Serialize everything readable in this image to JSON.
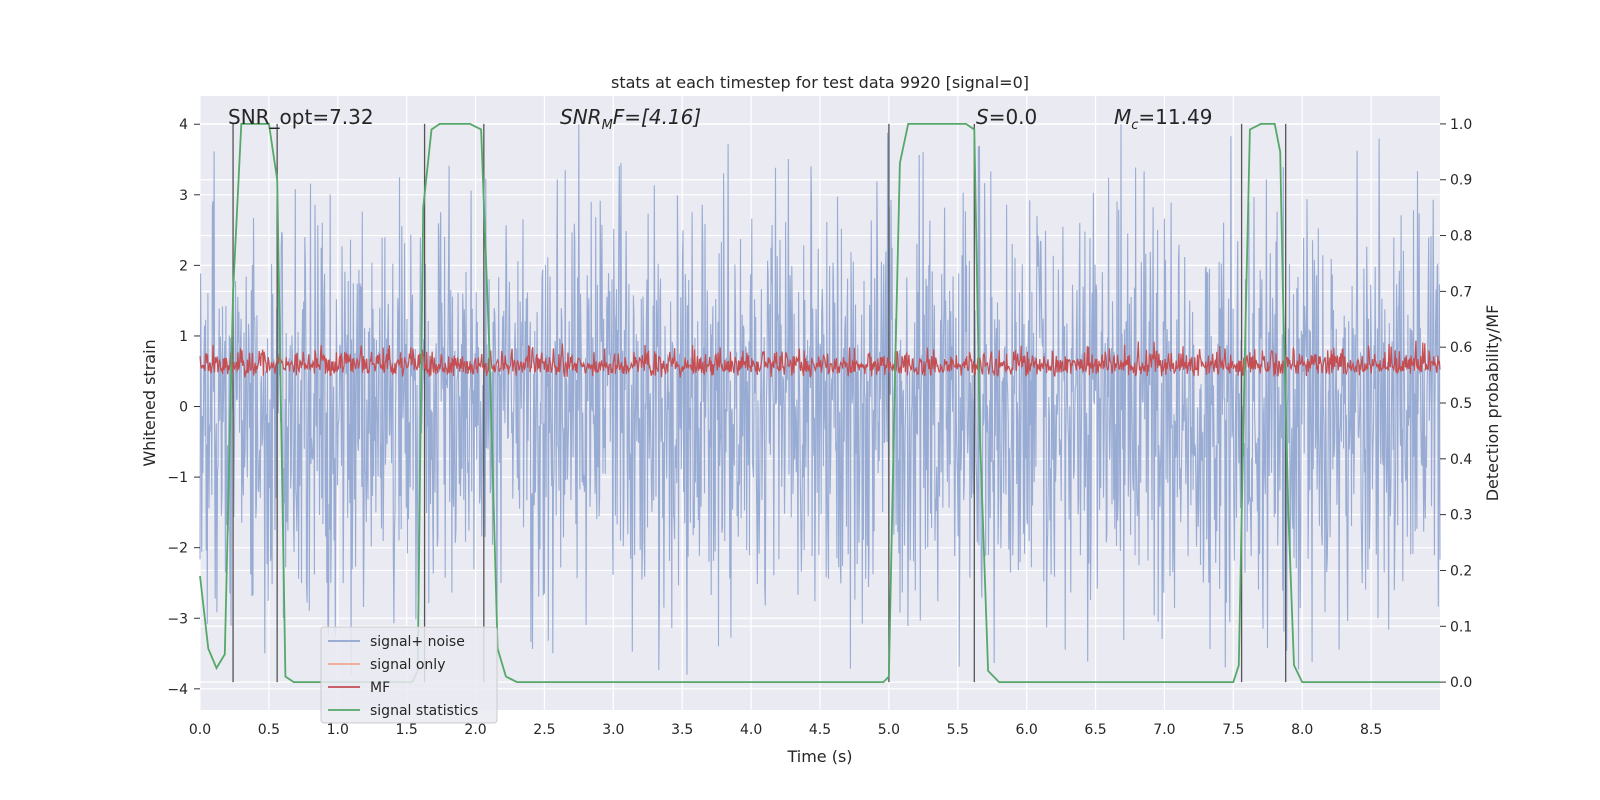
{
  "chart_data": {
    "type": "line",
    "title": "stats at each timestep for test data 9920 [signal=0]",
    "xlabel": "Time (s)",
    "ylabel_left": "Whitened strain",
    "ylabel_right": "Detection probability/MF",
    "xlim": [
      0.0,
      9.0
    ],
    "ylim_left": [
      -4.3,
      4.4
    ],
    "ylim_right": [
      -0.05,
      1.05
    ],
    "xticks": [
      "0.0",
      "0.5",
      "1.0",
      "1.5",
      "2.0",
      "2.5",
      "3.0",
      "3.5",
      "4.0",
      "4.5",
      "5.0",
      "5.5",
      "6.0",
      "6.5",
      "7.0",
      "7.5",
      "8.0",
      "8.5"
    ],
    "xtick_values": [
      0.0,
      0.5,
      1.0,
      1.5,
      2.0,
      2.5,
      3.0,
      3.5,
      4.0,
      4.5,
      5.0,
      5.5,
      6.0,
      6.5,
      7.0,
      7.5,
      8.0,
      8.5
    ],
    "yticks_left": [
      "−4",
      "−3",
      "−2",
      "−1",
      "0",
      "1",
      "2",
      "3",
      "4"
    ],
    "ytick_values_left": [
      -4,
      -3,
      -2,
      -1,
      0,
      1,
      2,
      3,
      4
    ],
    "yticks_right": [
      "0.0",
      "0.1",
      "0.2",
      "0.3",
      "0.4",
      "0.5",
      "0.6",
      "0.7",
      "0.8",
      "0.9",
      "1.0"
    ],
    "ytick_values_right": [
      0.0,
      0.1,
      0.2,
      0.3,
      0.4,
      0.5,
      0.6,
      0.7,
      0.8,
      0.9,
      1.0
    ],
    "annotations": {
      "snr_opt": "SNR_opt=7.32",
      "snr_mf_base": "SNR",
      "snr_mf_sub": "M",
      "snr_mf_rest": "F=[4.16]",
      "s_base": "S",
      "s_rest": "=0.0",
      "mc_base": "M",
      "mc_sub": "c",
      "mc_rest": "=11.49"
    },
    "legend": {
      "position": "lower-left",
      "entries": [
        {
          "label": "signal+ noise",
          "color": "#8fa4cf"
        },
        {
          "label": "signal only",
          "color": "#f0a98c"
        },
        {
          "label": "MF",
          "color": "#c44e52"
        },
        {
          "label": "signal statistics",
          "color": "#55a868"
        }
      ]
    },
    "series": [
      {
        "name": "signal+ noise",
        "axis": "left",
        "color": "#8fa4cf",
        "description": "whitened noise samples, roughly symmetric, amplitude mostly within ±3.5"
      },
      {
        "name": "MF",
        "axis": "right",
        "color": "#c44e52",
        "description": "matched filter output fluctuating between about 0.51 and 0.61"
      },
      {
        "name": "signal statistics",
        "axis": "right",
        "color": "#55a868",
        "x": [
          0.0,
          0.06,
          0.12,
          0.18,
          0.24,
          0.3,
          0.36,
          0.42,
          0.5,
          0.56,
          0.62,
          0.68,
          1.54,
          1.58,
          1.62,
          1.68,
          1.74,
          1.82,
          1.96,
          2.04,
          2.1,
          2.16,
          2.22,
          2.3,
          2.38,
          4.96,
          5.0,
          5.04,
          5.08,
          5.14,
          5.3,
          5.56,
          5.62,
          5.66,
          5.72,
          5.8,
          7.5,
          7.54,
          7.58,
          7.62,
          7.7,
          7.8,
          7.84,
          7.86,
          7.9,
          7.94,
          8.0,
          9.0
        ],
        "y": [
          0.19,
          0.06,
          0.025,
          0.05,
          0.7,
          1.0,
          1.0,
          1.0,
          1.0,
          0.9,
          0.01,
          0.0,
          0.0,
          0.02,
          0.85,
          0.99,
          1.0,
          1.0,
          1.0,
          0.99,
          0.6,
          0.06,
          0.01,
          0.0,
          0.0,
          0.0,
          0.01,
          0.5,
          0.93,
          1.0,
          1.0,
          1.0,
          0.99,
          0.45,
          0.02,
          0.0,
          0.0,
          0.03,
          0.55,
          0.99,
          1.0,
          1.0,
          0.95,
          0.7,
          0.3,
          0.03,
          0.0,
          0.0
        ]
      }
    ],
    "vertical_markers": [
      0.24,
      0.56,
      1.63,
      2.06,
      5.0,
      5.62,
      7.56,
      7.88
    ]
  }
}
